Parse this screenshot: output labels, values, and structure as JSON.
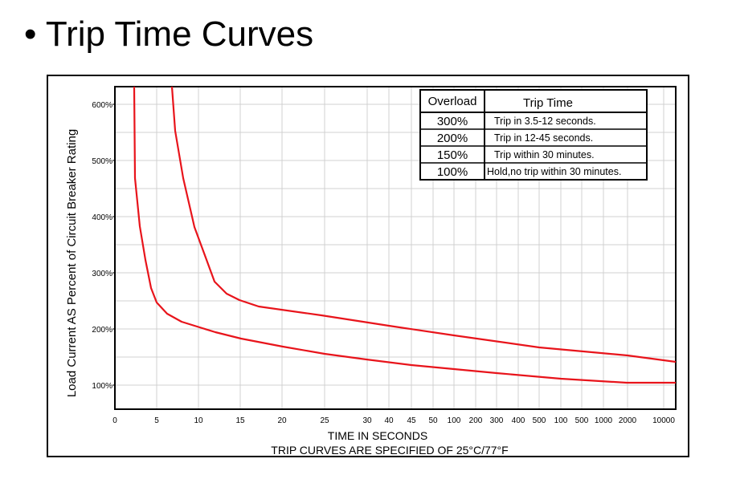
{
  "slide": {
    "bullet": "•",
    "title": "Trip Time Curves"
  },
  "chart_data": {
    "type": "line",
    "xlabel": "TIME IN SECONDS",
    "note": "TRIP CURVES ARE SPECIFIED OF 25°C/77°F",
    "ylabel": "Load Current AS Percent of Circuit Breaker Rating",
    "x_ticks": [
      "0",
      "5",
      "10",
      "15",
      "20",
      "25",
      "30",
      "40",
      "45",
      "50",
      "100",
      "200",
      "300",
      "400",
      "500",
      "100",
      "500",
      "1000",
      "2000",
      "10000"
    ],
    "y_ticks": [
      "100%",
      "200%",
      "300%",
      "400%",
      "500%",
      "600%"
    ],
    "ylim": [
      50,
      640
    ],
    "grid": true,
    "legend": {
      "position": "top-right",
      "header": [
        "Overload",
        "Trip Time"
      ],
      "rows": [
        [
          "300%",
          "Trip in 3.5-12 seconds."
        ],
        [
          "200%",
          "Trip in 12-45 seconds."
        ],
        [
          "150%",
          "Trip within 30 minutes."
        ],
        [
          "100%",
          "Hold,no trip within 30 minutes."
        ]
      ]
    },
    "series": [
      {
        "color": "#e8141b",
        "x": [
          2.2,
          2.3,
          2.7,
          3.2,
          3.8,
          5.0,
          6.5,
          8.0,
          12,
          15,
          20,
          25,
          30,
          45,
          100,
          300,
          100,
          1000,
          10000
        ],
        "y": [
          640,
          465,
          380,
          320,
          270,
          245,
          225,
          213,
          200,
          191,
          178,
          167,
          157,
          144,
          132,
          120,
          110,
          104,
          104
        ]
      },
      {
        "color": "#e8141b",
        "x": [
          6.6,
          7.0,
          8.0,
          9.5,
          11.0,
          12.5,
          14,
          15,
          17,
          25,
          40,
          100,
          500,
          2000,
          10000
        ],
        "y": [
          640,
          540,
          460,
          380,
          330,
          280,
          260,
          250,
          240,
          225,
          205,
          185,
          165,
          150,
          142
        ]
      }
    ]
  }
}
